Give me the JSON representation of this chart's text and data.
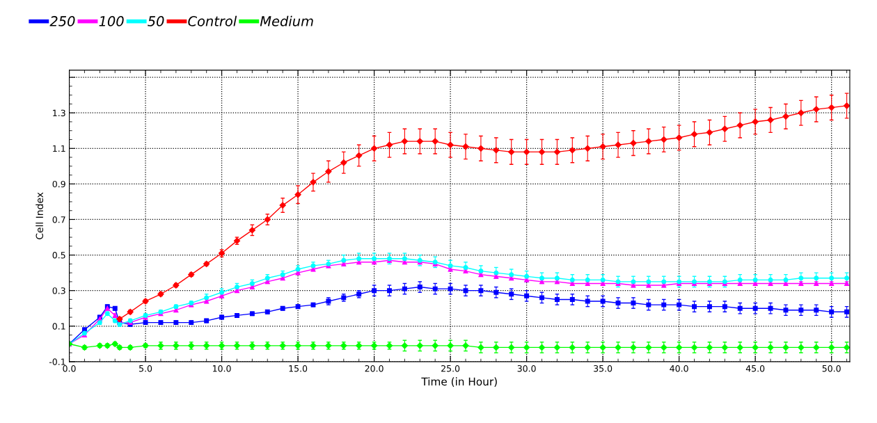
{
  "chart_data": {
    "type": "line",
    "xlabel": "Time (in Hour)",
    "ylabel": "Cell Index",
    "x": [
      0,
      1,
      2,
      2.5,
      3,
      3.3,
      4,
      5,
      6,
      7,
      8,
      9,
      10,
      11,
      12,
      13,
      14,
      15,
      16,
      17,
      18,
      19,
      20,
      21,
      22,
      23,
      24,
      25,
      26,
      27,
      28,
      29,
      30,
      31,
      32,
      33,
      34,
      35,
      36,
      37,
      38,
      39,
      40,
      41,
      42,
      43,
      44,
      45,
      46,
      47,
      48,
      49,
      50,
      51
    ],
    "series": [
      {
        "name": "250",
        "color": "#0000ff",
        "marker": "square",
        "values": [
          0,
          0.08,
          0.15,
          0.21,
          0.2,
          0.12,
          0.11,
          0.12,
          0.12,
          0.12,
          0.12,
          0.13,
          0.15,
          0.16,
          0.17,
          0.18,
          0.2,
          0.21,
          0.22,
          0.24,
          0.26,
          0.28,
          0.3,
          0.3,
          0.31,
          0.32,
          0.31,
          0.31,
          0.3,
          0.3,
          0.29,
          0.28,
          0.27,
          0.26,
          0.25,
          0.25,
          0.24,
          0.24,
          0.23,
          0.23,
          0.22,
          0.22,
          0.22,
          0.21,
          0.21,
          0.21,
          0.2,
          0.2,
          0.2,
          0.19,
          0.19,
          0.19,
          0.18,
          0.18
        ],
        "errors": [
          0,
          0.01,
          0.01,
          0.01,
          0.01,
          0.01,
          0.01,
          0.01,
          0.01,
          0.01,
          0.01,
          0.01,
          0.01,
          0.01,
          0.01,
          0.01,
          0.01,
          0.01,
          0.01,
          0.02,
          0.02,
          0.02,
          0.03,
          0.03,
          0.03,
          0.03,
          0.03,
          0.03,
          0.03,
          0.03,
          0.03,
          0.03,
          0.03,
          0.03,
          0.03,
          0.03,
          0.03,
          0.03,
          0.03,
          0.03,
          0.03,
          0.03,
          0.03,
          0.03,
          0.03,
          0.03,
          0.03,
          0.03,
          0.03,
          0.03,
          0.03,
          0.03,
          0.03,
          0.03
        ]
      },
      {
        "name": "100",
        "color": "#ff00ff",
        "marker": "triangle",
        "values": [
          0,
          0.05,
          0.14,
          0.2,
          0.16,
          0.12,
          0.12,
          0.15,
          0.17,
          0.19,
          0.22,
          0.24,
          0.27,
          0.3,
          0.32,
          0.35,
          0.37,
          0.4,
          0.42,
          0.44,
          0.45,
          0.46,
          0.46,
          0.47,
          0.46,
          0.46,
          0.45,
          0.42,
          0.41,
          0.39,
          0.38,
          0.37,
          0.36,
          0.35,
          0.35,
          0.34,
          0.34,
          0.34,
          0.34,
          0.33,
          0.33,
          0.33,
          0.34,
          0.34,
          0.34,
          0.34,
          0.34,
          0.34,
          0.34,
          0.34,
          0.34,
          0.34,
          0.34,
          0.34
        ],
        "errors": [
          0,
          0.01,
          0.01,
          0.01,
          0.01,
          0.01,
          0.01,
          0.01,
          0.01,
          0.01,
          0.01,
          0.01,
          0.01,
          0.01,
          0.01,
          0.01,
          0.01,
          0.01,
          0.01,
          0.01,
          0.01,
          0.01,
          0.01,
          0.01,
          0.01,
          0.01,
          0.01,
          0.01,
          0.01,
          0.01,
          0.01,
          0.01,
          0.01,
          0.01,
          0.01,
          0.01,
          0.01,
          0.01,
          0.01,
          0.01,
          0.01,
          0.01,
          0.01,
          0.01,
          0.01,
          0.01,
          0.01,
          0.01,
          0.01,
          0.01,
          0.01,
          0.01,
          0.01,
          0.01
        ]
      },
      {
        "name": "50",
        "color": "#00ffff",
        "marker": "circle",
        "values": [
          0,
          0.06,
          0.12,
          0.17,
          0.13,
          0.11,
          0.13,
          0.16,
          0.18,
          0.21,
          0.23,
          0.26,
          0.29,
          0.32,
          0.34,
          0.37,
          0.39,
          0.42,
          0.44,
          0.45,
          0.47,
          0.48,
          0.48,
          0.48,
          0.48,
          0.47,
          0.46,
          0.44,
          0.43,
          0.41,
          0.4,
          0.39,
          0.38,
          0.37,
          0.37,
          0.36,
          0.36,
          0.36,
          0.35,
          0.35,
          0.35,
          0.35,
          0.35,
          0.35,
          0.35,
          0.35,
          0.36,
          0.36,
          0.36,
          0.36,
          0.37,
          0.37,
          0.37,
          0.37
        ],
        "errors": [
          0,
          0.01,
          0.01,
          0.01,
          0.01,
          0.01,
          0.01,
          0.01,
          0.01,
          0.01,
          0.01,
          0.02,
          0.02,
          0.02,
          0.02,
          0.02,
          0.02,
          0.02,
          0.02,
          0.02,
          0.03,
          0.03,
          0.03,
          0.03,
          0.03,
          0.03,
          0.03,
          0.03,
          0.03,
          0.03,
          0.03,
          0.03,
          0.03,
          0.03,
          0.03,
          0.03,
          0.03,
          0.03,
          0.03,
          0.03,
          0.03,
          0.03,
          0.03,
          0.03,
          0.03,
          0.03,
          0.03,
          0.03,
          0.03,
          0.03,
          0.03,
          0.03,
          0.03,
          0.03
        ]
      },
      {
        "name": "Control",
        "color": "#ff0000",
        "marker": "diamond",
        "values": [
          null,
          null,
          null,
          null,
          null,
          0.14,
          0.18,
          0.24,
          0.28,
          0.33,
          0.39,
          0.45,
          0.51,
          0.58,
          0.64,
          0.7,
          0.78,
          0.84,
          0.91,
          0.97,
          1.02,
          1.06,
          1.1,
          1.12,
          1.14,
          1.14,
          1.14,
          1.12,
          1.11,
          1.1,
          1.09,
          1.08,
          1.08,
          1.08,
          1.08,
          1.09,
          1.1,
          1.11,
          1.12,
          1.13,
          1.14,
          1.15,
          1.16,
          1.18,
          1.19,
          1.21,
          1.23,
          1.25,
          1.26,
          1.28,
          1.3,
          1.32,
          1.33,
          1.34
        ],
        "errors": [
          null,
          null,
          null,
          null,
          null,
          0.01,
          0.01,
          0.01,
          0.01,
          0.01,
          0.01,
          0.01,
          0.02,
          0.02,
          0.03,
          0.03,
          0.04,
          0.05,
          0.05,
          0.06,
          0.06,
          0.06,
          0.07,
          0.07,
          0.07,
          0.07,
          0.07,
          0.07,
          0.07,
          0.07,
          0.07,
          0.07,
          0.07,
          0.07,
          0.07,
          0.07,
          0.07,
          0.07,
          0.07,
          0.07,
          0.07,
          0.07,
          0.07,
          0.07,
          0.07,
          0.07,
          0.07,
          0.07,
          0.07,
          0.07,
          0.07,
          0.07,
          0.07,
          0.07
        ]
      },
      {
        "name": "Medium",
        "color": "#00ff00",
        "marker": "diamond",
        "values": [
          0,
          -0.02,
          -0.01,
          -0.01,
          0,
          -0.02,
          -0.02,
          -0.01,
          -0.01,
          -0.01,
          -0.01,
          -0.01,
          -0.01,
          -0.01,
          -0.01,
          -0.01,
          -0.01,
          -0.01,
          -0.01,
          -0.01,
          -0.01,
          -0.01,
          -0.01,
          -0.01,
          -0.01,
          -0.01,
          -0.01,
          -0.01,
          -0.01,
          -0.02,
          -0.02,
          -0.02,
          -0.02,
          -0.02,
          -0.02,
          -0.02,
          -0.02,
          -0.02,
          -0.02,
          -0.02,
          -0.02,
          -0.02,
          -0.02,
          -0.02,
          -0.02,
          -0.02,
          -0.02,
          -0.02,
          -0.02,
          -0.02,
          -0.02,
          -0.02,
          -0.02,
          -0.02
        ],
        "errors": [
          0,
          0.01,
          0.01,
          0.01,
          0.01,
          0.01,
          0.01,
          0.01,
          0.02,
          0.02,
          0.02,
          0.02,
          0.02,
          0.02,
          0.02,
          0.02,
          0.02,
          0.02,
          0.02,
          0.02,
          0.02,
          0.02,
          0.02,
          0.02,
          0.03,
          0.03,
          0.03,
          0.03,
          0.03,
          0.03,
          0.03,
          0.03,
          0.03,
          0.03,
          0.03,
          0.03,
          0.03,
          0.03,
          0.03,
          0.03,
          0.03,
          0.03,
          0.03,
          0.03,
          0.03,
          0.03,
          0.03,
          0.03,
          0.03,
          0.03,
          0.03,
          0.03,
          0.03,
          0.03
        ]
      }
    ],
    "xlim": [
      0,
      51.2
    ],
    "xticks": [
      {
        "value": 0,
        "label": "0.0"
      },
      {
        "value": 5,
        "label": "5.0"
      },
      {
        "value": 10,
        "label": "10.0"
      },
      {
        "value": 15,
        "label": "15.0"
      },
      {
        "value": 20,
        "label": "20.0"
      },
      {
        "value": 25,
        "label": "25.0"
      },
      {
        "value": 30,
        "label": "30.0"
      },
      {
        "value": 35,
        "label": "35.0"
      },
      {
        "value": 40,
        "label": "40.0"
      },
      {
        "value": 45,
        "label": "45.0"
      },
      {
        "value": 50,
        "label": "50.0"
      }
    ],
    "ylim": [
      -0.1,
      1.54
    ],
    "yticks": [
      -0.1,
      0.1,
      0.3,
      0.5,
      0.7,
      0.9,
      1.1,
      1.3,
      {
        "value": 1.5,
        "label": null
      }
    ],
    "grid": true,
    "legend": "top left",
    "line_style": "solid"
  }
}
